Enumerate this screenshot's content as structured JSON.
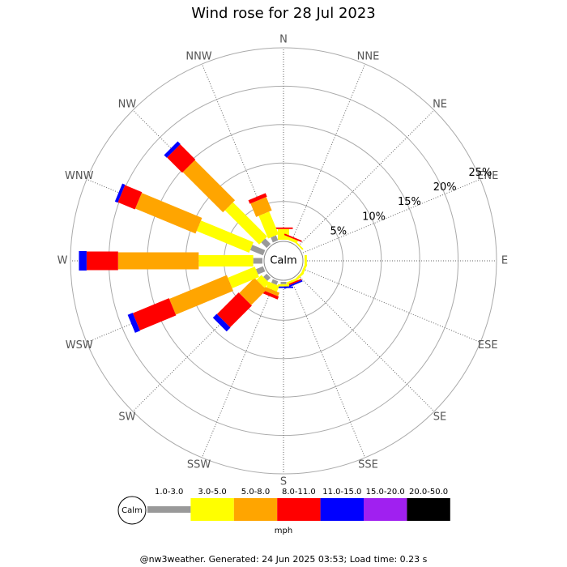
{
  "chart_data": {
    "type": "windrose",
    "title": "Wind rose for 28 Jul 2023",
    "categories": [
      "N",
      "NNE",
      "NE",
      "ENE",
      "E",
      "ESE",
      "SE",
      "SSE",
      "S",
      "SSW",
      "SW",
      "WSW",
      "W",
      "WNW",
      "NW",
      "NNW"
    ],
    "calm_label": "Calm",
    "unit": "mph",
    "rlim": [
      0,
      25
    ],
    "rticks": [
      {
        "value": 5,
        "label": "5%"
      },
      {
        "value": 10,
        "label": "10%"
      },
      {
        "value": 15,
        "label": "15%"
      },
      {
        "value": 20,
        "label": "20%"
      },
      {
        "value": 25,
        "label": "25%"
      }
    ],
    "series": [
      {
        "name": "1.0-3.0",
        "color": "#999999",
        "values": [
          0,
          0,
          0,
          0,
          0,
          0,
          0,
          0,
          0.3,
          0.5,
          0.6,
          1.0,
          1.2,
          1.8,
          1.0,
          0.7
        ]
      },
      {
        "name": "3.0-5.0",
        "color": "#ffff00",
        "values": [
          1.4,
          0.4,
          0.2,
          0,
          0.3,
          0.3,
          0.3,
          0.3,
          0.3,
          0.8,
          0.9,
          3.8,
          7.1,
          7.4,
          6.3,
          3.2
        ]
      },
      {
        "name": "5.0-8.0",
        "color": "#ffa500",
        "values": [
          0,
          0,
          0,
          0,
          0,
          0,
          0,
          0,
          0,
          0.5,
          2.8,
          8.1,
          10.5,
          8.5,
          7.4,
          1.9
        ]
      },
      {
        "name": "8.0-11.0",
        "color": "#ff0000",
        "values": [
          0.2,
          0.2,
          0,
          0,
          0,
          0,
          0,
          0.2,
          0,
          0.4,
          4.0,
          5.1,
          4.1,
          2.4,
          2.8,
          0.5
        ]
      },
      {
        "name": "11.0-15.0",
        "color": "#0000ff",
        "values": [
          0,
          0,
          0,
          0,
          0,
          0,
          0,
          0.2,
          0.2,
          0,
          0.7,
          0.7,
          1.0,
          0.4,
          0.5,
          0
        ]
      },
      {
        "name": "15.0-20.0",
        "color": "#a020f0",
        "values": [
          0,
          0,
          0,
          0,
          0,
          0,
          0,
          0,
          0,
          0,
          0,
          0,
          0,
          0,
          0,
          0
        ]
      },
      {
        "name": "20.0-50.0",
        "color": "#000000",
        "values": [
          0,
          0,
          0,
          0,
          0,
          0,
          0,
          0,
          0,
          0,
          0,
          0,
          0,
          0,
          0,
          0
        ]
      }
    ],
    "footer": "@nw3weather. Generated: 24 Jun 2025 03:53; Load time: 0.23 s"
  }
}
